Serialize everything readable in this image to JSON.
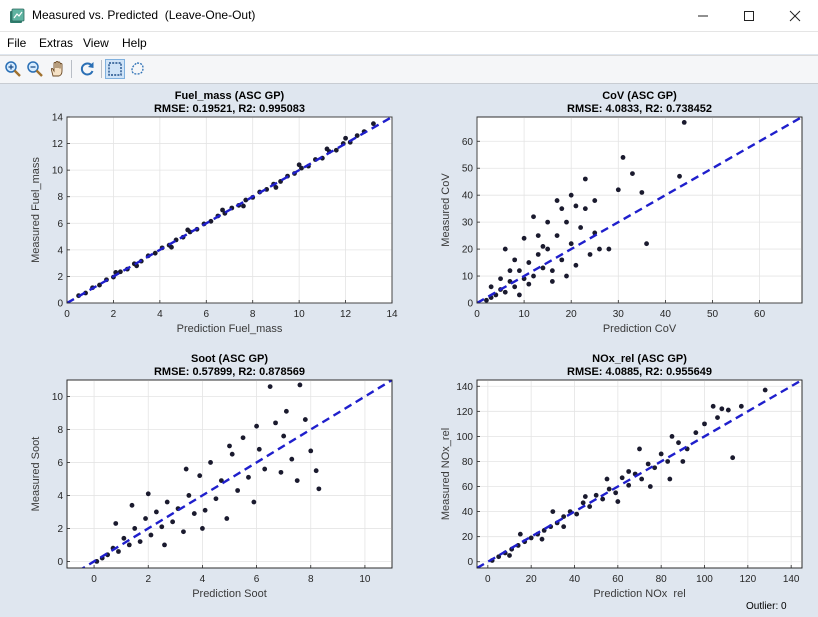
{
  "window": {
    "title": "Measured vs. Predicted  (Leave-One-Out)",
    "minimize_icon": "minimize-icon",
    "maximize_icon": "maximize-icon",
    "close_icon": "close-icon"
  },
  "menu": {
    "items": [
      {
        "label": "File"
      },
      {
        "label": "Extras"
      },
      {
        "label": "View"
      },
      {
        "label": "Help"
      }
    ]
  },
  "toolbar": {
    "buttons": [
      {
        "icon": "zoom-in-icon"
      },
      {
        "icon": "zoom-out-icon"
      },
      {
        "icon": "pan-hand-icon"
      },
      {
        "icon": "refresh-icon"
      },
      {
        "icon": "rectangle-select-icon",
        "active": true
      },
      {
        "icon": "lasso-select-icon"
      }
    ]
  },
  "status": {
    "outlier": "Outlier: 0"
  },
  "colors": {
    "points": "#1a1a2e",
    "identity_line": "#1f1fcc"
  },
  "chart_data": [
    {
      "type": "scatter",
      "title": "Fuel_mass (ASC GP)",
      "subtitle": "RMSE: 0.19521, R2: 0.995083",
      "xlabel": "Prediction Fuel_mass",
      "ylabel": "Measured Fuel_mass",
      "xlim": [
        0,
        14
      ],
      "ylim": [
        0,
        14
      ],
      "xticks": [
        "0",
        "2",
        "4",
        "6",
        "8",
        "10",
        "12",
        "14"
      ],
      "yticks": [
        "0",
        "2",
        "4",
        "6",
        "8",
        "10",
        "12",
        "14"
      ],
      "grid": true,
      "reference_line": "y=x dashed",
      "points": [
        [
          0.5,
          0.55
        ],
        [
          0.8,
          0.75
        ],
        [
          1.1,
          1.15
        ],
        [
          1.4,
          1.35
        ],
        [
          1.7,
          1.75
        ],
        [
          2.0,
          1.95
        ],
        [
          2.3,
          2.35
        ],
        [
          2.6,
          2.55
        ],
        [
          2.9,
          2.95
        ],
        [
          3.2,
          3.15
        ],
        [
          3.5,
          3.55
        ],
        [
          3.8,
          3.75
        ],
        [
          4.1,
          4.15
        ],
        [
          4.4,
          4.35
        ],
        [
          4.7,
          4.75
        ],
        [
          5.0,
          4.95
        ],
        [
          5.3,
          5.35
        ],
        [
          5.6,
          5.55
        ],
        [
          5.9,
          5.95
        ],
        [
          6.2,
          6.15
        ],
        [
          6.5,
          6.55
        ],
        [
          6.8,
          6.75
        ],
        [
          7.1,
          7.15
        ],
        [
          7.4,
          7.35
        ],
        [
          7.7,
          7.75
        ],
        [
          8.0,
          7.95
        ],
        [
          8.3,
          8.35
        ],
        [
          8.6,
          8.55
        ],
        [
          8.9,
          8.95
        ],
        [
          9.2,
          9.15
        ],
        [
          9.5,
          9.55
        ],
        [
          9.8,
          9.75
        ],
        [
          10.1,
          10.15
        ],
        [
          10.4,
          10.3
        ],
        [
          10.7,
          10.8
        ],
        [
          11.0,
          10.9
        ],
        [
          11.3,
          11.4
        ],
        [
          11.6,
          11.5
        ],
        [
          11.9,
          12.0
        ],
        [
          12.2,
          12.1
        ],
        [
          12.5,
          12.6
        ],
        [
          12.8,
          12.9
        ],
        [
          13.2,
          13.5
        ],
        [
          2.1,
          2.3
        ],
        [
          4.5,
          4.2
        ],
        [
          6.7,
          7.0
        ],
        [
          9.0,
          8.7
        ],
        [
          11.2,
          11.6
        ],
        [
          12.0,
          12.4
        ],
        [
          3.0,
          2.8
        ],
        [
          5.2,
          5.5
        ],
        [
          7.6,
          7.3
        ],
        [
          10.0,
          10.4
        ]
      ]
    },
    {
      "type": "scatter",
      "title": "CoV (ASC GP)",
      "subtitle": "RMSE: 4.0833, R2: 0.738452",
      "xlabel": "Prediction CoV",
      "ylabel": "Measured CoV",
      "xlim": [
        0,
        69
      ],
      "ylim": [
        0,
        69
      ],
      "xticks": [
        "0",
        "10",
        "20",
        "30",
        "40",
        "50",
        "60"
      ],
      "yticks": [
        "0",
        "10",
        "20",
        "30",
        "40",
        "50",
        "60"
      ],
      "grid": true,
      "reference_line": "y=x dashed",
      "points": [
        [
          2,
          1
        ],
        [
          3,
          2
        ],
        [
          4,
          3
        ],
        [
          5,
          5
        ],
        [
          6,
          4
        ],
        [
          7,
          8
        ],
        [
          8,
          6
        ],
        [
          9,
          12
        ],
        [
          10,
          9
        ],
        [
          11,
          15
        ],
        [
          12,
          10
        ],
        [
          13,
          18
        ],
        [
          14,
          13
        ],
        [
          15,
          20
        ],
        [
          16,
          12
        ],
        [
          17,
          25
        ],
        [
          18,
          16
        ],
        [
          19,
          30
        ],
        [
          20,
          22
        ],
        [
          21,
          14
        ],
        [
          22,
          28
        ],
        [
          23,
          35
        ],
        [
          24,
          18
        ],
        [
          25,
          26
        ],
        [
          26,
          20
        ],
        [
          3,
          6
        ],
        [
          5,
          9
        ],
        [
          7,
          12
        ],
        [
          9,
          3
        ],
        [
          11,
          7
        ],
        [
          13,
          25
        ],
        [
          15,
          30
        ],
        [
          17,
          38
        ],
        [
          19,
          10
        ],
        [
          21,
          36
        ],
        [
          23,
          46
        ],
        [
          25,
          38
        ],
        [
          28,
          20
        ],
        [
          30,
          42
        ],
        [
          31,
          54
        ],
        [
          33,
          48
        ],
        [
          35,
          41
        ],
        [
          36,
          22
        ],
        [
          44,
          67
        ],
        [
          43,
          47
        ],
        [
          6,
          20
        ],
        [
          8,
          16
        ],
        [
          10,
          24
        ],
        [
          12,
          32
        ],
        [
          14,
          21
        ],
        [
          16,
          8
        ],
        [
          18,
          35
        ],
        [
          20,
          40
        ]
      ]
    },
    {
      "type": "scatter",
      "title": "Soot (ASC GP)",
      "subtitle": "RMSE: 0.57899, R2: 0.878569",
      "xlabel": "Prediction Soot",
      "ylabel": "Measured Soot",
      "xlim": [
        -1,
        11
      ],
      "ylim": [
        -0.4,
        11
      ],
      "xticks": [
        "0",
        "2",
        "4",
        "6",
        "8",
        "10"
      ],
      "yticks": [
        "0",
        "2",
        "4",
        "6",
        "8",
        "10"
      ],
      "grid": true,
      "reference_line": "y=x dashed",
      "points": [
        [
          0.1,
          0.0
        ],
        [
          0.3,
          0.2
        ],
        [
          0.5,
          0.4
        ],
        [
          0.7,
          0.8
        ],
        [
          0.9,
          0.6
        ],
        [
          1.1,
          1.4
        ],
        [
          1.3,
          1.0
        ],
        [
          1.5,
          2.0
        ],
        [
          1.7,
          1.2
        ],
        [
          1.9,
          2.6
        ],
        [
          2.1,
          1.6
        ],
        [
          2.3,
          3.0
        ],
        [
          2.5,
          2.1
        ],
        [
          2.7,
          3.6
        ],
        [
          2.9,
          2.4
        ],
        [
          3.1,
          3.2
        ],
        [
          3.3,
          1.8
        ],
        [
          3.5,
          4.0
        ],
        [
          3.7,
          2.9
        ],
        [
          3.9,
          5.2
        ],
        [
          4.1,
          3.1
        ],
        [
          4.3,
          6.0
        ],
        [
          4.5,
          3.8
        ],
        [
          4.7,
          4.9
        ],
        [
          4.9,
          2.6
        ],
        [
          5.1,
          6.5
        ],
        [
          5.3,
          4.3
        ],
        [
          5.5,
          7.5
        ],
        [
          5.7,
          5.1
        ],
        [
          5.9,
          3.6
        ],
        [
          6.1,
          6.8
        ],
        [
          6.3,
          5.6
        ],
        [
          6.5,
          10.6
        ],
        [
          6.7,
          8.4
        ],
        [
          6.9,
          5.4
        ],
        [
          7.1,
          9.1
        ],
        [
          7.3,
          6.2
        ],
        [
          7.5,
          4.9
        ],
        [
          7.6,
          10.7
        ],
        [
          7.8,
          8.6
        ],
        [
          8.2,
          5.5
        ],
        [
          8.3,
          4.4
        ],
        [
          8.0,
          6.7
        ],
        [
          0.8,
          2.3
        ],
        [
          1.4,
          3.4
        ],
        [
          2.0,
          4.1
        ],
        [
          2.6,
          1.0
        ],
        [
          3.4,
          5.6
        ],
        [
          4.0,
          2.0
        ],
        [
          5.0,
          7.0
        ],
        [
          6.0,
          8.2
        ],
        [
          7.0,
          7.6
        ]
      ]
    },
    {
      "type": "scatter",
      "title": "NOx_rel (ASC GP)",
      "subtitle": "RMSE: 4.0885, R2: 0.955649",
      "xlabel": "Prediction NOx_rel",
      "ylabel": "Measured NOx_rel",
      "xlim": [
        -5,
        145
      ],
      "ylim": [
        -5,
        145
      ],
      "xticks": [
        "0",
        "20",
        "40",
        "60",
        "80",
        "100",
        "120",
        "140"
      ],
      "yticks": [
        "0",
        "20",
        "40",
        "60",
        "80",
        "100",
        "120",
        "140"
      ],
      "grid": true,
      "reference_line": "y=x dashed",
      "points": [
        [
          2,
          1
        ],
        [
          5,
          4
        ],
        [
          8,
          7
        ],
        [
          11,
          10
        ],
        [
          14,
          13
        ],
        [
          17,
          16
        ],
        [
          20,
          19
        ],
        [
          23,
          22
        ],
        [
          26,
          25
        ],
        [
          29,
          28
        ],
        [
          32,
          31
        ],
        [
          35,
          36
        ],
        [
          38,
          40
        ],
        [
          41,
          38
        ],
        [
          44,
          47
        ],
        [
          47,
          44
        ],
        [
          50,
          53
        ],
        [
          53,
          50
        ],
        [
          56,
          58
        ],
        [
          59,
          55
        ],
        [
          62,
          67
        ],
        [
          65,
          61
        ],
        [
          68,
          70
        ],
        [
          71,
          66
        ],
        [
          74,
          78
        ],
        [
          77,
          75
        ],
        [
          80,
          86
        ],
        [
          83,
          80
        ],
        [
          88,
          95
        ],
        [
          92,
          90
        ],
        [
          96,
          103
        ],
        [
          100,
          110
        ],
        [
          104,
          124
        ],
        [
          106,
          115
        ],
        [
          108,
          122
        ],
        [
          111,
          121
        ],
        [
          113,
          83
        ],
        [
          117,
          124
        ],
        [
          128,
          137
        ],
        [
          84,
          66
        ],
        [
          90,
          80
        ],
        [
          45,
          52
        ],
        [
          55,
          66
        ],
        [
          60,
          48
        ],
        [
          70,
          90
        ],
        [
          75,
          60
        ],
        [
          30,
          40
        ],
        [
          25,
          18
        ],
        [
          15,
          22
        ],
        [
          10,
          5
        ],
        [
          35,
          28
        ],
        [
          65,
          72
        ],
        [
          85,
          100
        ]
      ]
    }
  ]
}
